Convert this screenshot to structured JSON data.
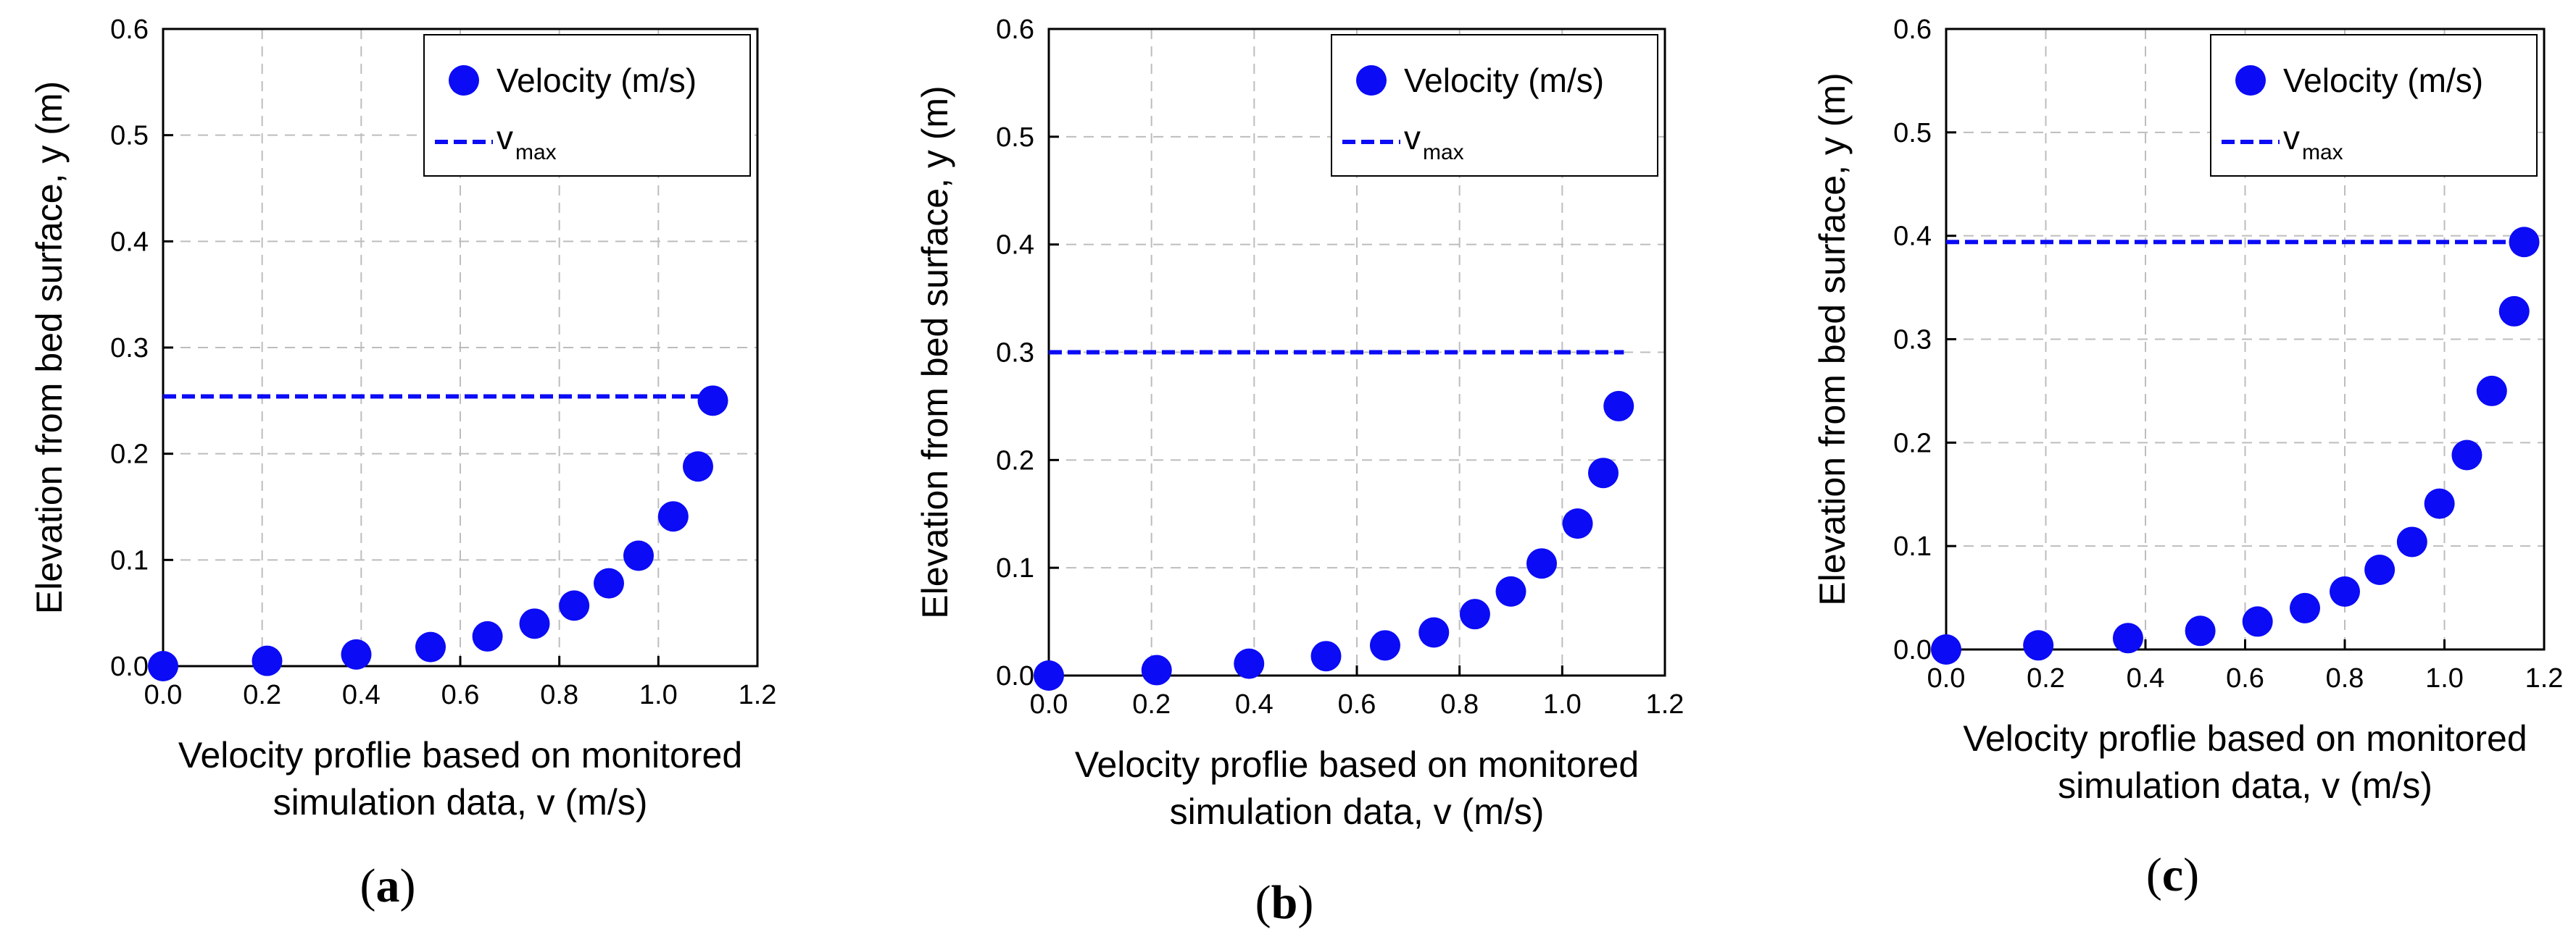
{
  "chart_data": [
    {
      "type": "scatter",
      "panel": "a",
      "caption_letter": "a",
      "xlabel_line1": "Velocity proflie based on monitored",
      "xlabel_line2": "simulation data, v (m/s)",
      "ylabel": "Elevation from bed surface, y (m)",
      "xlim": [
        0,
        1.2
      ],
      "ylim": [
        0,
        0.6
      ],
      "xticks": [
        "0.0",
        "0.2",
        "0.4",
        "0.6",
        "0.8",
        "1.0",
        "1.2"
      ],
      "yticks": [
        "0.0",
        "0.1",
        "0.2",
        "0.3",
        "0.4",
        "0.5",
        "0.6"
      ],
      "grid": true,
      "legend": {
        "position": "top-right",
        "velocity_label": "Velocity (m/s)",
        "vmax_label_main": "v",
        "vmax_label_sub": "max"
      },
      "series": [
        {
          "name": "Velocity (m/s)",
          "points": [
            {
              "x": 0.0,
              "y": 0.0
            },
            {
              "x": 0.21,
              "y": 0.005
            },
            {
              "x": 0.39,
              "y": 0.011
            },
            {
              "x": 0.54,
              "y": 0.018
            },
            {
              "x": 0.655,
              "y": 0.028
            },
            {
              "x": 0.75,
              "y": 0.04
            },
            {
              "x": 0.83,
              "y": 0.057
            },
            {
              "x": 0.9,
              "y": 0.078
            },
            {
              "x": 0.96,
              "y": 0.104
            },
            {
              "x": 1.03,
              "y": 0.141
            },
            {
              "x": 1.08,
              "y": 0.188
            },
            {
              "x": 1.11,
              "y": 0.25
            }
          ]
        }
      ],
      "vmax": {
        "y": 0.254,
        "x_start": 0.0,
        "x_end": 1.11
      }
    },
    {
      "type": "scatter",
      "panel": "b",
      "caption_letter": "b",
      "xlabel_line1": "Velocity proflie based on monitored",
      "xlabel_line2": "simulation data, v (m/s)",
      "ylabel": "Elevation from bed surface, y (m)",
      "xlim": [
        0,
        1.2
      ],
      "ylim": [
        0,
        0.6
      ],
      "xticks": [
        "0.0",
        "0.2",
        "0.4",
        "0.6",
        "0.8",
        "1.0",
        "1.2"
      ],
      "yticks": [
        "0.0",
        "0.1",
        "0.2",
        "0.3",
        "0.4",
        "0.5",
        "0.6"
      ],
      "grid": true,
      "legend": {
        "position": "top-right",
        "velocity_label": "Velocity (m/s)",
        "vmax_label_main": "v",
        "vmax_label_sub": "max"
      },
      "series": [
        {
          "name": "Velocity (m/s)",
          "points": [
            {
              "x": 0.0,
              "y": 0.0
            },
            {
              "x": 0.21,
              "y": 0.005
            },
            {
              "x": 0.39,
              "y": 0.011
            },
            {
              "x": 0.54,
              "y": 0.018
            },
            {
              "x": 0.655,
              "y": 0.028
            },
            {
              "x": 0.75,
              "y": 0.04
            },
            {
              "x": 0.83,
              "y": 0.057
            },
            {
              "x": 0.9,
              "y": 0.078
            },
            {
              "x": 0.96,
              "y": 0.104
            },
            {
              "x": 1.03,
              "y": 0.141
            },
            {
              "x": 1.08,
              "y": 0.188
            },
            {
              "x": 1.11,
              "y": 0.25
            }
          ]
        }
      ],
      "vmax": {
        "y": 0.3,
        "x_start": 0.0,
        "x_end": 1.12
      }
    },
    {
      "type": "scatter",
      "panel": "c",
      "caption_letter": "c",
      "xlabel_line1": "Velocity proflie based on monitored",
      "xlabel_line2": "simulation data, v (m/s)",
      "ylabel": "Elevation from bed surface, y (m)",
      "xlim": [
        0,
        1.2
      ],
      "ylim": [
        0,
        0.6
      ],
      "xticks": [
        "0.0",
        "0.2",
        "0.4",
        "0.6",
        "0.8",
        "1.0",
        "1.2"
      ],
      "yticks": [
        "0.0",
        "0.1",
        "0.2",
        "0.3",
        "0.4",
        "0.5",
        "0.6"
      ],
      "grid": true,
      "legend": {
        "position": "top-right",
        "velocity_label": "Velocity (m/s)",
        "vmax_label_main": "v",
        "vmax_label_sub": "max"
      },
      "series": [
        {
          "name": "Velocity (m/s)",
          "points": [
            {
              "x": 0.0,
              "y": 0.0
            },
            {
              "x": 0.185,
              "y": 0.004
            },
            {
              "x": 0.365,
              "y": 0.011
            },
            {
              "x": 0.51,
              "y": 0.018
            },
            {
              "x": 0.625,
              "y": 0.027
            },
            {
              "x": 0.72,
              "y": 0.04
            },
            {
              "x": 0.8,
              "y": 0.056
            },
            {
              "x": 0.87,
              "y": 0.077
            },
            {
              "x": 0.935,
              "y": 0.104
            },
            {
              "x": 0.99,
              "y": 0.141
            },
            {
              "x": 1.045,
              "y": 0.188
            },
            {
              "x": 1.095,
              "y": 0.25
            },
            {
              "x": 1.14,
              "y": 0.327
            },
            {
              "x": 1.16,
              "y": 0.394
            }
          ]
        }
      ],
      "vmax": {
        "y": 0.394,
        "x_start": 0.0,
        "x_end": 1.16
      }
    }
  ],
  "colors": {
    "marker": "#0b0bf5",
    "vmax_line": "#0b0bf5",
    "grid": "#bdbdbd",
    "axis": "#000000",
    "background": "#ffffff"
  }
}
